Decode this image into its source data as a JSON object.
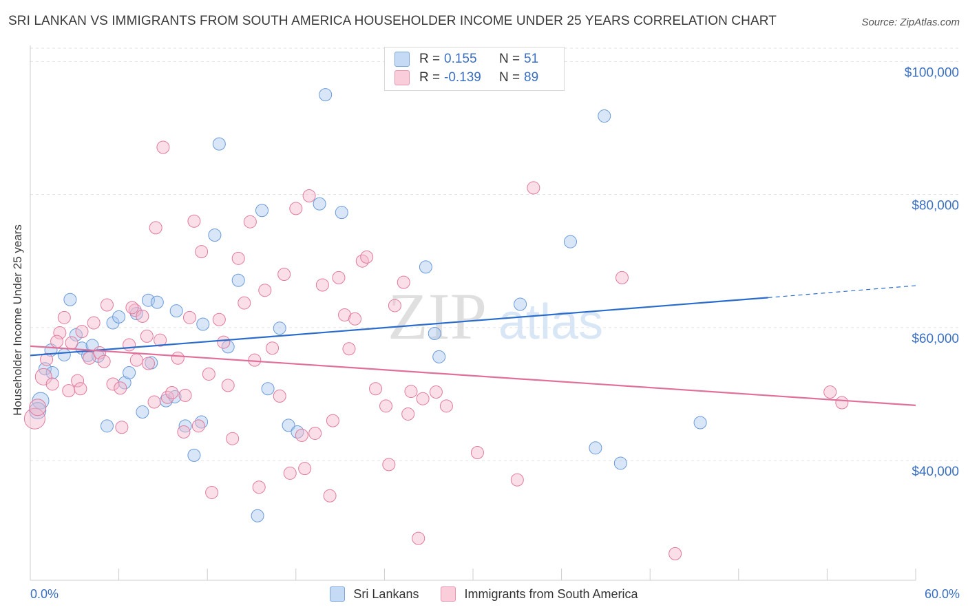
{
  "header": {
    "title": "SRI LANKAN VS IMMIGRANTS FROM SOUTH AMERICA HOUSEHOLDER INCOME UNDER 25 YEARS CORRELATION CHART",
    "source": "Source: ZipAtlas.com"
  },
  "watermark": {
    "part1": "ZIP",
    "part2": "atlas"
  },
  "legend_top": {
    "rows": [
      {
        "r_label": "R =",
        "r_value": "0.155",
        "n_label": "N =",
        "n_value": "51",
        "color": "#a8c8f0"
      },
      {
        "r_label": "R =",
        "r_value": "-0.139",
        "n_label": "N =",
        "n_value": "89",
        "color": "#f5b8cb"
      }
    ]
  },
  "chart_data": {
    "type": "scatter",
    "title": "SRI LANKAN VS IMMIGRANTS FROM SOUTH AMERICA HOUSEHOLDER INCOME UNDER 25 YEARS CORRELATION CHART",
    "xlabel": "",
    "ylabel": "Householder Income Under 25 years",
    "xlim": [
      0,
      60
    ],
    "ylim": [
      22000,
      102000
    ],
    "x_tick_labels": [
      "0.0%",
      "60.0%"
    ],
    "y_ticks": [
      40000,
      60000,
      80000,
      100000
    ],
    "y_tick_labels": [
      "$40,000",
      "$60,000",
      "$80,000",
      "$100,000"
    ],
    "grid": true,
    "legend_position": "bottom",
    "series": [
      {
        "name": "Sri Lankans",
        "color": "#a8c8f0",
        "stroke": "#6a9ad8",
        "trend": {
          "x": [
            0,
            50
          ],
          "y": [
            55800,
            64500
          ],
          "dashed_to": [
            60,
            66300
          ],
          "color": "#2a6ccc"
        },
        "points": [
          [
            0.7,
            49000,
            1
          ],
          [
            0.5,
            47500,
            1
          ],
          [
            1.0,
            53800,
            0
          ],
          [
            1.5,
            53200,
            0
          ],
          [
            1.4,
            56600,
            0
          ],
          [
            2.3,
            55900,
            0
          ],
          [
            2.7,
            64200,
            0
          ],
          [
            3.1,
            58900,
            0
          ],
          [
            3.5,
            56900,
            0
          ],
          [
            3.9,
            55800,
            0
          ],
          [
            4.2,
            57300,
            0
          ],
          [
            4.6,
            55700,
            0
          ],
          [
            5.2,
            45200,
            0
          ],
          [
            5.6,
            60700,
            0
          ],
          [
            6.0,
            61600,
            0
          ],
          [
            6.4,
            51700,
            0
          ],
          [
            6.7,
            53200,
            0
          ],
          [
            7.2,
            62100,
            0
          ],
          [
            7.6,
            47300,
            0
          ],
          [
            8.0,
            64100,
            0
          ],
          [
            8.2,
            54700,
            0
          ],
          [
            8.6,
            63800,
            0
          ],
          [
            9.2,
            49000,
            0
          ],
          [
            9.8,
            49600,
            0
          ],
          [
            9.9,
            62500,
            0
          ],
          [
            10.5,
            45200,
            0
          ],
          [
            11.1,
            40800,
            0
          ],
          [
            11.6,
            45800,
            0
          ],
          [
            11.7,
            60500,
            0
          ],
          [
            12.5,
            73900,
            0
          ],
          [
            12.8,
            87600,
            0
          ],
          [
            13.4,
            57100,
            0
          ],
          [
            14.1,
            67100,
            0
          ],
          [
            15.4,
            31700,
            0
          ],
          [
            15.7,
            77600,
            0
          ],
          [
            16.1,
            50800,
            0
          ],
          [
            16.9,
            59900,
            0
          ],
          [
            17.5,
            45300,
            0
          ],
          [
            18.1,
            44300,
            0
          ],
          [
            19.6,
            78600,
            0
          ],
          [
            20.0,
            95000,
            0
          ],
          [
            21.1,
            77300,
            0
          ],
          [
            26.8,
            69100,
            0
          ],
          [
            27.4,
            59100,
            0
          ],
          [
            27.7,
            55600,
            0
          ],
          [
            33.2,
            63500,
            0
          ],
          [
            36.6,
            72900,
            0
          ],
          [
            38.3,
            41900,
            0
          ],
          [
            38.9,
            91800,
            0
          ],
          [
            40.0,
            39600,
            0
          ],
          [
            45.4,
            45700,
            0
          ]
        ]
      },
      {
        "name": "Immigrants from South America",
        "color": "#f5b8cb",
        "stroke": "#e07a9e",
        "trend": {
          "x": [
            0,
            60
          ],
          "y": [
            57200,
            48300
          ],
          "color": "#e0709a"
        },
        "points": [
          [
            0.3,
            46300,
            2
          ],
          [
            0.5,
            48000,
            1
          ],
          [
            0.9,
            52600,
            1
          ],
          [
            1.1,
            55200,
            0
          ],
          [
            1.5,
            51500,
            0
          ],
          [
            2.0,
            59200,
            0
          ],
          [
            2.3,
            61500,
            0
          ],
          [
            2.6,
            50500,
            0
          ],
          [
            2.8,
            57700,
            0
          ],
          [
            3.2,
            52000,
            0
          ],
          [
            3.4,
            50800,
            0
          ],
          [
            3.5,
            59400,
            0
          ],
          [
            4.0,
            55400,
            0
          ],
          [
            4.3,
            60700,
            0
          ],
          [
            4.7,
            56200,
            0
          ],
          [
            5.0,
            54900,
            0
          ],
          [
            5.2,
            63400,
            0
          ],
          [
            5.6,
            51500,
            0
          ],
          [
            6.1,
            50900,
            0
          ],
          [
            6.2,
            45000,
            0
          ],
          [
            6.7,
            57400,
            0
          ],
          [
            7.1,
            62600,
            0
          ],
          [
            7.2,
            55100,
            0
          ],
          [
            7.6,
            61700,
            0
          ],
          [
            7.9,
            58700,
            0
          ],
          [
            8.0,
            54600,
            0
          ],
          [
            8.4,
            48800,
            0
          ],
          [
            8.5,
            75000,
            0
          ],
          [
            8.8,
            58100,
            0
          ],
          [
            9.0,
            87100,
            0
          ],
          [
            9.3,
            49500,
            0
          ],
          [
            9.6,
            50200,
            0
          ],
          [
            10.0,
            55400,
            0
          ],
          [
            10.4,
            44300,
            0
          ],
          [
            10.5,
            49800,
            0
          ],
          [
            10.8,
            61500,
            0
          ],
          [
            11.1,
            76000,
            0
          ],
          [
            11.4,
            45200,
            0
          ],
          [
            11.6,
            71400,
            0
          ],
          [
            12.1,
            53000,
            0
          ],
          [
            12.3,
            35200,
            0
          ],
          [
            12.8,
            61200,
            0
          ],
          [
            13.1,
            57800,
            0
          ],
          [
            13.4,
            51300,
            0
          ],
          [
            13.7,
            43300,
            0
          ],
          [
            14.1,
            70400,
            0
          ],
          [
            14.5,
            63700,
            0
          ],
          [
            14.9,
            75900,
            0
          ],
          [
            15.2,
            55100,
            0
          ],
          [
            15.5,
            36000,
            0
          ],
          [
            15.9,
            65600,
            0
          ],
          [
            16.4,
            56900,
            0
          ],
          [
            16.9,
            49700,
            0
          ],
          [
            17.2,
            68000,
            0
          ],
          [
            17.6,
            38100,
            0
          ],
          [
            18.0,
            77900,
            0
          ],
          [
            18.4,
            43800,
            0
          ],
          [
            18.6,
            38800,
            0
          ],
          [
            18.9,
            79800,
            0
          ],
          [
            19.3,
            44100,
            0
          ],
          [
            19.8,
            66400,
            0
          ],
          [
            20.3,
            34700,
            0
          ],
          [
            20.5,
            46000,
            0
          ],
          [
            20.9,
            67500,
            0
          ],
          [
            21.3,
            61900,
            0
          ],
          [
            21.6,
            56800,
            0
          ],
          [
            22.0,
            61300,
            0
          ],
          [
            22.5,
            70000,
            0
          ],
          [
            22.8,
            70600,
            0
          ],
          [
            23.4,
            50800,
            0
          ],
          [
            24.1,
            48200,
            0
          ],
          [
            24.3,
            39400,
            0
          ],
          [
            24.7,
            63300,
            0
          ],
          [
            25.3,
            66800,
            0
          ],
          [
            25.6,
            47000,
            0
          ],
          [
            25.8,
            50400,
            0
          ],
          [
            26.3,
            28300,
            0
          ],
          [
            26.6,
            49300,
            0
          ],
          [
            27.5,
            50300,
            0
          ],
          [
            28.2,
            48200,
            0
          ],
          [
            30.3,
            41200,
            0
          ],
          [
            33.0,
            37100,
            0
          ],
          [
            34.1,
            81000,
            0
          ],
          [
            40.1,
            67500,
            0
          ],
          [
            43.7,
            26000,
            0
          ],
          [
            54.2,
            50300,
            0
          ],
          [
            55.0,
            48700,
            0
          ],
          [
            1.8,
            57900,
            0
          ],
          [
            6.9,
            63000,
            0
          ]
        ]
      }
    ]
  }
}
